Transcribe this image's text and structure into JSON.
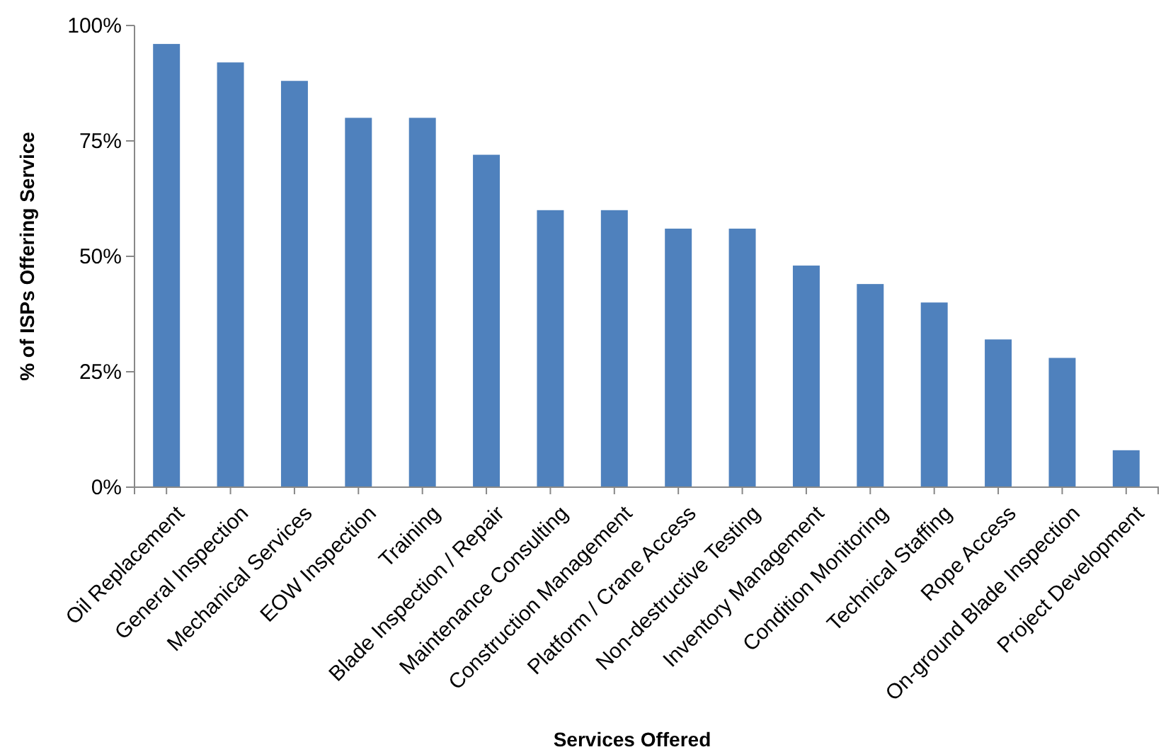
{
  "chart_data": {
    "type": "bar",
    "xlabel": "Services Offered",
    "ylabel": "% of ISPs Offering Service",
    "categories": [
      "Oil Replacement",
      "General Inspection",
      "Mechanical Services",
      "EOW Inspection",
      "Training",
      "Blade Inspection / Repair",
      "Maintenance Consulting",
      "Construction Management",
      "Platform / Crane Access",
      "Non-destructive Testing",
      "Inventory Management",
      "Condition Monitoring",
      "Technical Staffing",
      "Rope Access",
      "On-ground Blade Inspection",
      "Project Development"
    ],
    "values": [
      96,
      92,
      88,
      80,
      80,
      72,
      60,
      60,
      56,
      56,
      48,
      44,
      40,
      32,
      28,
      8
    ],
    "color": "#4f81bd",
    "ylim": [
      0,
      100
    ],
    "yticks": [
      {
        "value": 0,
        "label": "0%"
      },
      {
        "value": 25,
        "label": "25%"
      },
      {
        "value": 50,
        "label": "50%"
      },
      {
        "value": 75,
        "label": "75%"
      },
      {
        "value": 100,
        "label": "100%"
      }
    ],
    "grid": false
  }
}
